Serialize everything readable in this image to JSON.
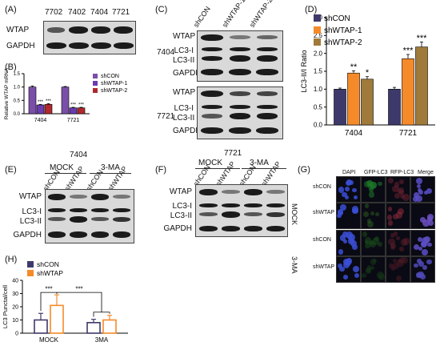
{
  "panels": {
    "A": {
      "label": "(A)",
      "lanes": [
        "7702",
        "7402",
        "7404",
        "7721"
      ],
      "rows": [
        "WTAP",
        "GAPDH"
      ]
    },
    "B": {
      "label": "(B)",
      "ylabel": "Relative WTAP mRNA",
      "legend": [
        "shCON",
        "shWTAP-1",
        "shWTAP-2"
      ],
      "colors": [
        "#7b4fa8",
        "#6b3bb0",
        "#b0282d"
      ]
    },
    "C": {
      "label": "(C)",
      "lanes": [
        "shCON",
        "shWTAP-1",
        "shWTAP-2"
      ],
      "group1": "7404",
      "group2": "7721",
      "rows": [
        "WTAP",
        "LC3-I",
        "LC3-II",
        "GAPDH"
      ]
    },
    "D": {
      "label": "(D)",
      "legend": [
        "shCON",
        "shWTAP-1",
        "shWTAP-2"
      ],
      "colors": [
        "#3d3a6b",
        "#f58a2a",
        "#a07a3a"
      ]
    },
    "E": {
      "label": "(E)",
      "title": "7404",
      "group1": "MOCK",
      "group2": "3-MA",
      "lanes": [
        "shCON",
        "shWTAP",
        "shCON",
        "shWTAP"
      ],
      "rows": [
        "WTAP",
        "LC3-I",
        "LC3-II",
        "GAPDH"
      ]
    },
    "F": {
      "label": "(F)",
      "title": "7721",
      "group1": "MOCK",
      "group2": "3-MA",
      "lanes": [
        "shCON",
        "shWTAP",
        "shCON",
        "shWTAP"
      ],
      "rows": [
        "WTAP",
        "LC3-I",
        "LC3-II",
        "GAPDH"
      ]
    },
    "G": {
      "label": "(G)",
      "cols": [
        "DAPI",
        "GFP-LC3",
        "RFP-LC3",
        "Merge"
      ],
      "groups": [
        "MOCK",
        "3-MA"
      ],
      "rows": [
        "shCON",
        "shWTAP",
        "shCON",
        "shWTAP"
      ]
    },
    "H": {
      "label": "(H)",
      "legend": [
        "shCON",
        "shWTAP"
      ],
      "colors": [
        "#3d3a6b",
        "#f58a2a"
      ]
    }
  },
  "chart_data": [
    {
      "id": "B",
      "type": "bar",
      "categories": [
        "7404",
        "7721"
      ],
      "series": [
        {
          "name": "shCON",
          "values": [
            1.0,
            1.0
          ]
        },
        {
          "name": "shWTAP-1",
          "values": [
            0.33,
            0.22
          ]
        },
        {
          "name": "shWTAP-2",
          "values": [
            0.35,
            0.22
          ]
        }
      ],
      "errors": [
        [
          0.04,
          0.02
        ],
        [
          0.02,
          0.02
        ],
        [
          0.03,
          0.02
        ]
      ],
      "ylabel": "Relative WTAP mRNA",
      "yticks": [
        "0.0",
        "0.5",
        "1.0",
        "1.5"
      ],
      "ylim": [
        0,
        1.5
      ],
      "significance": [
        [
          "",
          "***",
          "***"
        ],
        [
          "",
          "***",
          "***"
        ]
      ],
      "legend_position": "top-right"
    },
    {
      "id": "D",
      "type": "bar",
      "categories": [
        "7404",
        "7721"
      ],
      "series": [
        {
          "name": "shCON",
          "values": [
            1.0,
            1.0
          ]
        },
        {
          "name": "shWTAP-1",
          "values": [
            1.45,
            1.85
          ]
        },
        {
          "name": "shWTAP-2",
          "values": [
            1.28,
            2.18
          ]
        }
      ],
      "errors": [
        [
          0.03,
          0.05
        ],
        [
          0.06,
          0.12
        ],
        [
          0.07,
          0.14
        ]
      ],
      "ylabel": "LC3-II/I Ratio",
      "yticks": [
        "0.0",
        "0.5",
        "1.0",
        "1.5",
        "2.0",
        "2.5",
        "3.0"
      ],
      "ylim": [
        0,
        3.0
      ],
      "significance": [
        [
          "",
          "**",
          "*"
        ],
        [
          "",
          "***",
          "***"
        ]
      ],
      "legend_position": "top-left"
    },
    {
      "id": "H",
      "type": "bar",
      "categories": [
        "MOCK",
        "3MA"
      ],
      "series": [
        {
          "name": "shCON",
          "values": [
            10,
            8
          ]
        },
        {
          "name": "shWTAP",
          "values": [
            21,
            10
          ]
        }
      ],
      "errors": [
        [
          5,
          2.5
        ],
        [
          8,
          3.5
        ]
      ],
      "ylabel": "LC3 Punctal/cell",
      "yticks": [
        "0",
        "10",
        "20",
        "30",
        "40"
      ],
      "ylim": [
        0,
        40
      ],
      "significance_brackets": [
        "***",
        "***"
      ],
      "legend_position": "top-left"
    }
  ]
}
